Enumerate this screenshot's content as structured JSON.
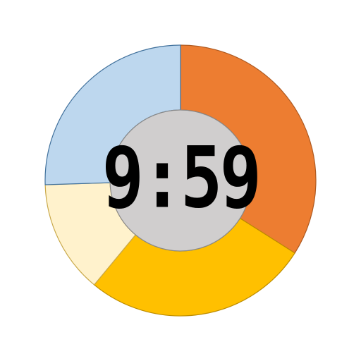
{
  "chart_data": {
    "type": "donut",
    "center_label": "9:59",
    "values": [
      34,
      27,
      13.5,
      25.5
    ],
    "colors": [
      "#ed7d31",
      "#ffc000",
      "#fff2cc",
      "#bdd7ee"
    ],
    "stroke_colors": [
      "#ae5a21",
      "#bc8c00",
      "#c9a94a",
      "#41719c"
    ],
    "center_color": "#d0cece"
  }
}
